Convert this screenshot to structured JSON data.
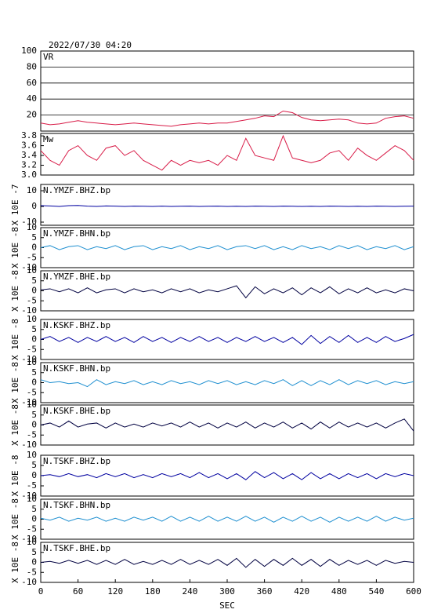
{
  "chart_data": [
    {
      "type": "line",
      "title": "2022/07/30 04:20",
      "xlim": [
        0,
        600
      ],
      "ylim": [
        0,
        100
      ],
      "yticks": [
        20,
        40,
        60,
        80,
        100
      ],
      "grid": true,
      "x": [
        0,
        15,
        30,
        45,
        60,
        75,
        90,
        105,
        120,
        135,
        150,
        165,
        180,
        195,
        210,
        225,
        240,
        255,
        270,
        285,
        300,
        315,
        330,
        345,
        360,
        375,
        390,
        405,
        420,
        435,
        450,
        465,
        480,
        495,
        510,
        525,
        540,
        555,
        570,
        585,
        600
      ],
      "series": [
        {
          "name": "VR",
          "color": "#d81b47",
          "values": [
            10,
            8,
            9,
            11,
            13,
            11,
            10,
            9,
            8,
            9,
            10,
            9,
            8,
            7,
            6,
            8,
            9,
            10,
            9,
            10,
            10,
            12,
            14,
            16,
            19,
            18,
            25,
            23,
            17,
            14,
            13,
            14,
            15,
            14,
            10,
            9,
            10,
            16,
            18,
            19,
            16
          ]
        }
      ]
    },
    {
      "type": "line",
      "xlim": [
        0,
        600
      ],
      "ylim": [
        3.0,
        3.85
      ],
      "yticks": [
        {
          "value": 3,
          "label": "3.0"
        },
        3.2,
        3.4,
        3.6,
        3.8
      ],
      "grid": false,
      "x": [
        0,
        15,
        30,
        45,
        60,
        75,
        90,
        105,
        120,
        135,
        150,
        165,
        180,
        195,
        210,
        225,
        240,
        255,
        270,
        285,
        300,
        315,
        330,
        345,
        360,
        375,
        390,
        405,
        420,
        435,
        450,
        465,
        480,
        495,
        510,
        525,
        540,
        555,
        570,
        585,
        600
      ],
      "series": [
        {
          "name": "Mw",
          "color": "#d81b47",
          "values": [
            3.5,
            3.3,
            3.2,
            3.5,
            3.6,
            3.4,
            3.3,
            3.55,
            3.6,
            3.4,
            3.5,
            3.3,
            3.2,
            3.1,
            3.3,
            3.2,
            3.3,
            3.25,
            3.3,
            3.2,
            3.4,
            3.3,
            3.75,
            3.4,
            3.35,
            3.3,
            3.8,
            3.35,
            3.3,
            3.25,
            3.3,
            3.45,
            3.5,
            3.3,
            3.55,
            3.4,
            3.3,
            3.45,
            3.6,
            3.5,
            3.3
          ]
        }
      ]
    },
    {
      "type": "line",
      "ylabel": "X 10E -7",
      "xlim": [
        0,
        600
      ],
      "ylim": [
        -12,
        14
      ],
      "yticks": [
        -10,
        0,
        10
      ],
      "grid": false,
      "x": [
        0,
        15,
        30,
        45,
        60,
        75,
        90,
        105,
        120,
        135,
        150,
        165,
        180,
        195,
        210,
        225,
        240,
        255,
        270,
        285,
        300,
        315,
        330,
        345,
        360,
        375,
        390,
        405,
        420,
        435,
        450,
        465,
        480,
        495,
        510,
        525,
        540,
        555,
        570,
        585,
        600
      ],
      "series": [
        {
          "name": "N.YMZF.BHZ.bp",
          "color": "#0000a0",
          "values": [
            0.5,
            0.3,
            0,
            0.5,
            0.6,
            0.2,
            0,
            0.3,
            0.2,
            0,
            0.2,
            0.1,
            0,
            0.2,
            0,
            0.1,
            0.2,
            0,
            0.1,
            0.2,
            0,
            0.1,
            0,
            0.2,
            0.1,
            0,
            0.2,
            0.1,
            0,
            0.1,
            0,
            0.2,
            0.1,
            0,
            0.1,
            0,
            0.2,
            0.1,
            0,
            0.1,
            0.2
          ]
        }
      ]
    },
    {
      "type": "line",
      "ylabel": "X 10E -8",
      "xlim": [
        0,
        600
      ],
      "ylim": [
        -10,
        10
      ],
      "yticks": [
        -10,
        -5,
        0,
        5,
        10
      ],
      "grid": false,
      "x": [
        0,
        15,
        30,
        45,
        60,
        75,
        90,
        105,
        120,
        135,
        150,
        165,
        180,
        195,
        210,
        225,
        240,
        255,
        270,
        285,
        300,
        315,
        330,
        345,
        360,
        375,
        390,
        405,
        420,
        435,
        450,
        465,
        480,
        495,
        510,
        525,
        540,
        555,
        570,
        585,
        600
      ],
      "series": [
        {
          "name": "N.YMZF.BHN.bp",
          "color": "#1e8fd0",
          "values": [
            0,
            1,
            -1,
            0.5,
            1,
            -1,
            0.5,
            -0.5,
            1,
            -1,
            0.5,
            1,
            -1,
            0.5,
            -0.5,
            1,
            -1,
            0.5,
            -0.5,
            1,
            -1,
            0.5,
            1,
            -0.5,
            1,
            -1,
            0.5,
            -1,
            1,
            -0.5,
            0.5,
            -1,
            1,
            -0.5,
            1,
            -1,
            0.5,
            -0.5,
            1,
            -1,
            0.5
          ]
        }
      ]
    },
    {
      "type": "line",
      "ylabel": "X 10E -8",
      "xlim": [
        0,
        600
      ],
      "ylim": [
        -10,
        10
      ],
      "yticks": [
        -10,
        -5,
        0,
        5,
        10
      ],
      "grid": false,
      "x": [
        0,
        15,
        30,
        45,
        60,
        75,
        90,
        105,
        120,
        135,
        150,
        165,
        180,
        195,
        210,
        225,
        240,
        255,
        270,
        285,
        300,
        315,
        330,
        345,
        360,
        375,
        390,
        405,
        420,
        435,
        450,
        465,
        480,
        495,
        510,
        525,
        540,
        555,
        570,
        585,
        600
      ],
      "series": [
        {
          "name": "N.YMZF.BHE.bp",
          "color": "#000040",
          "values": [
            0.5,
            1,
            -0.5,
            1,
            -1,
            1.5,
            -1,
            0.5,
            1,
            -1,
            1,
            -0.5,
            0.5,
            -1,
            1,
            -0.5,
            1,
            -1,
            0.5,
            -0.5,
            1,
            2.5,
            -3.5,
            2,
            -1.5,
            1,
            -1,
            1.5,
            -2,
            1.5,
            -1,
            2,
            -1.5,
            1,
            -1,
            1.5,
            -1,
            0.5,
            -1,
            1,
            0
          ]
        }
      ]
    },
    {
      "type": "line",
      "ylabel": "X 10E -8",
      "xlim": [
        0,
        600
      ],
      "ylim": [
        -10,
        10
      ],
      "yticks": [
        -10,
        -5,
        0,
        5,
        10
      ],
      "grid": false,
      "x": [
        0,
        15,
        30,
        45,
        60,
        75,
        90,
        105,
        120,
        135,
        150,
        165,
        180,
        195,
        210,
        225,
        240,
        255,
        270,
        285,
        300,
        315,
        330,
        345,
        360,
        375,
        390,
        405,
        420,
        435,
        450,
        465,
        480,
        495,
        510,
        525,
        540,
        555,
        570,
        585,
        600
      ],
      "series": [
        {
          "name": "N.KSKF.BHZ.bp",
          "color": "#0000a0",
          "values": [
            0,
            1.5,
            -1,
            1,
            -1.5,
            1,
            -1,
            1.5,
            -1,
            1,
            -1.5,
            1.5,
            -1,
            1,
            -1.5,
            1,
            -1,
            1.5,
            -1,
            1,
            -1.5,
            1,
            -1,
            1.5,
            -1,
            1,
            -1.5,
            1,
            -2.5,
            2,
            -2,
            1.5,
            -1.5,
            2,
            -1.5,
            1,
            -1.5,
            1.5,
            -1,
            0.5,
            2.5
          ]
        }
      ]
    },
    {
      "type": "line",
      "ylabel": "X 10E -8",
      "xlim": [
        0,
        600
      ],
      "ylim": [
        -10,
        10
      ],
      "yticks": [
        -10,
        -5,
        0,
        5,
        10
      ],
      "grid": false,
      "x": [
        0,
        15,
        30,
        45,
        60,
        75,
        90,
        105,
        120,
        135,
        150,
        165,
        180,
        195,
        210,
        225,
        240,
        255,
        270,
        285,
        300,
        315,
        330,
        345,
        360,
        375,
        390,
        405,
        420,
        435,
        450,
        465,
        480,
        495,
        510,
        525,
        540,
        555,
        570,
        585,
        600
      ],
      "series": [
        {
          "name": "N.KSKF.BHN.bp",
          "color": "#1e8fd0",
          "values": [
            1.5,
            0,
            0.5,
            -0.5,
            0,
            -2,
            1.5,
            -1,
            0.5,
            -0.5,
            1,
            -1,
            0.5,
            -1,
            1,
            -0.5,
            0.5,
            -1,
            1,
            -0.5,
            1,
            -1,
            0.5,
            -1,
            1,
            -0.5,
            1.5,
            -1.5,
            1,
            -1.5,
            1,
            -1,
            1.5,
            -1,
            1,
            -0.5,
            1,
            -1,
            0.5,
            -0.5,
            0.5
          ]
        }
      ]
    },
    {
      "type": "line",
      "ylabel": "X 10E -8",
      "xlim": [
        0,
        600
      ],
      "ylim": [
        -10,
        10
      ],
      "yticks": [
        -10,
        -5,
        0,
        5,
        10
      ],
      "grid": false,
      "x": [
        0,
        15,
        30,
        45,
        60,
        75,
        90,
        105,
        120,
        135,
        150,
        165,
        180,
        195,
        210,
        225,
        240,
        255,
        270,
        285,
        300,
        315,
        330,
        345,
        360,
        375,
        390,
        405,
        420,
        435,
        450,
        465,
        480,
        495,
        510,
        525,
        540,
        555,
        570,
        585,
        600
      ],
      "series": [
        {
          "name": "N.KSKF.BHE.bp",
          "color": "#000040",
          "values": [
            0,
            1,
            -1,
            2,
            -1,
            0.5,
            1,
            -1.5,
            1,
            -1,
            0.5,
            -1,
            1,
            -0.5,
            1,
            -1,
            1.5,
            -1,
            1,
            -1.5,
            1,
            -1,
            1.5,
            -1.5,
            1,
            -1,
            1.5,
            -1.5,
            1,
            -2,
            1.5,
            -1.5,
            1.5,
            -1,
            1,
            -1,
            1,
            -1.5,
            1,
            3,
            -3
          ]
        }
      ]
    },
    {
      "type": "line",
      "ylabel": "X 10E -8",
      "xlim": [
        0,
        600
      ],
      "ylim": [
        -10,
        10
      ],
      "yticks": [
        -10,
        -5,
        0,
        5,
        10
      ],
      "grid": false,
      "x": [
        0,
        15,
        30,
        45,
        60,
        75,
        90,
        105,
        120,
        135,
        150,
        165,
        180,
        195,
        210,
        225,
        240,
        255,
        270,
        285,
        300,
        315,
        330,
        345,
        360,
        375,
        390,
        405,
        420,
        435,
        450,
        465,
        480,
        495,
        510,
        525,
        540,
        555,
        570,
        585,
        600
      ],
      "series": [
        {
          "name": "N.TSKF.BHZ.bp",
          "color": "#0000a0",
          "values": [
            0,
            0.5,
            -0.5,
            1,
            -0.5,
            0.5,
            -1,
            1,
            -0.5,
            1,
            -1,
            0.5,
            -1,
            1,
            -0.5,
            1,
            -1,
            1.5,
            -1,
            1,
            -1.5,
            1,
            -2,
            2,
            -1,
            1.5,
            -1.5,
            1,
            -2,
            1.5,
            -1.5,
            1,
            -1.5,
            1,
            -1,
            1,
            -1.5,
            1,
            -0.5,
            1,
            0
          ]
        }
      ]
    },
    {
      "type": "line",
      "ylabel": "X 10E -8",
      "xlim": [
        0,
        600
      ],
      "ylim": [
        -10,
        10
      ],
      "yticks": [
        -10,
        -5,
        0,
        5,
        10
      ],
      "grid": false,
      "x": [
        0,
        15,
        30,
        45,
        60,
        75,
        90,
        105,
        120,
        135,
        150,
        165,
        180,
        195,
        210,
        225,
        240,
        255,
        270,
        285,
        300,
        315,
        330,
        345,
        360,
        375,
        390,
        405,
        420,
        435,
        450,
        465,
        480,
        495,
        510,
        525,
        540,
        555,
        570,
        585,
        600
      ],
      "series": [
        {
          "name": "N.TSKF.BHN.bp",
          "color": "#1e8fd0",
          "values": [
            0.5,
            -0.5,
            1,
            -1,
            0.5,
            -0.5,
            1,
            -1,
            0.5,
            -1,
            1,
            -0.5,
            1,
            -1,
            1.5,
            -1,
            1,
            -1,
            1.5,
            -1,
            1,
            -1,
            1.5,
            -1,
            1,
            -1.5,
            1,
            -1,
            1.5,
            -1,
            1,
            -1.5,
            1,
            -1,
            1,
            -1,
            1.5,
            -1,
            1,
            -0.5,
            0.5
          ]
        }
      ]
    },
    {
      "type": "line",
      "ylabel": "X 10E -8",
      "xlabel": "SEC",
      "xlim": [
        0,
        600
      ],
      "xticks": [
        0,
        60,
        120,
        180,
        240,
        300,
        360,
        420,
        480,
        540,
        600
      ],
      "ylim": [
        -10,
        10
      ],
      "yticks": [
        -10,
        -5,
        0,
        5,
        10
      ],
      "grid": false,
      "x": [
        0,
        15,
        30,
        45,
        60,
        75,
        90,
        105,
        120,
        135,
        150,
        165,
        180,
        195,
        210,
        225,
        240,
        255,
        270,
        285,
        300,
        315,
        330,
        345,
        360,
        375,
        390,
        405,
        420,
        435,
        450,
        465,
        480,
        495,
        510,
        525,
        540,
        555,
        570,
        585,
        600
      ],
      "series": [
        {
          "name": "N.TSKF.BHE.bp",
          "color": "#000040",
          "values": [
            0,
            0.5,
            -0.5,
            1,
            -0.5,
            1,
            -1,
            1,
            -1,
            1.5,
            -1,
            0.5,
            -1,
            1,
            -1,
            1.5,
            -1,
            1,
            -1,
            1.5,
            -1.5,
            2,
            -2.5,
            1.5,
            -2,
            1.5,
            -1.5,
            2,
            -1.5,
            1.5,
            -2,
            1.5,
            -1.5,
            1,
            -1,
            1,
            -1.5,
            1,
            -0.5,
            0.5,
            0
          ]
        }
      ]
    }
  ]
}
